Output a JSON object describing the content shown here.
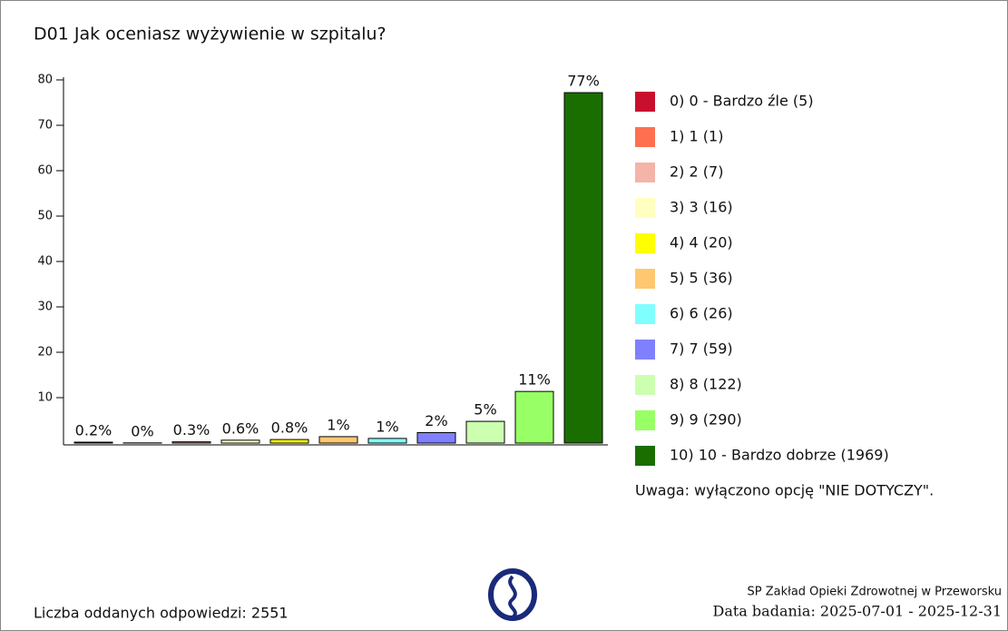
{
  "chart_data": {
    "type": "bar",
    "title": "D01 Jak oceniasz wyżywienie w szpitalu?",
    "categories": [
      "0) 0 - Bardzo źle (5)",
      "1) 1 (1)",
      "2) 2 (7)",
      "3) 3 (16)",
      "4) 4 (20)",
      "5) 5 (36)",
      "6) 6 (26)",
      "7) 7 (59)",
      "8) 8 (122)",
      "9) 9 (290)",
      "10) 10 - Bardzo dobrze (1969)"
    ],
    "values": [
      0.2,
      0.04,
      0.27,
      0.63,
      0.78,
      1.41,
      1.02,
      2.31,
      4.78,
      11.37,
      77.19
    ],
    "value_labels": [
      "0.2%",
      "0%",
      "0.3%",
      "0.6%",
      "0.8%",
      "1%",
      "1%",
      "2%",
      "5%",
      "11%",
      "77%"
    ],
    "colors": [
      "#c8102e",
      "#ff7050",
      "#f4b4a8",
      "#ffffc0",
      "#ffff00",
      "#ffc870",
      "#80ffff",
      "#8080ff",
      "#ccffb0",
      "#99ff66",
      "#1a6e00"
    ],
    "ylim": [
      0,
      80
    ],
    "yticks": [
      10,
      20,
      30,
      40,
      50,
      60,
      70,
      80
    ],
    "legend": "right",
    "note": "Uwaga: wyłączono opcję \"NIE DOTYCZY\".",
    "footer_left": "Liczba oddanych odpowiedzi: 2551",
    "footer_right": [
      "SP Zakład Opieki Zdrowotnej w Przeworsku",
      "Data badania: 2025-07-01 - 2025-12-31"
    ]
  }
}
